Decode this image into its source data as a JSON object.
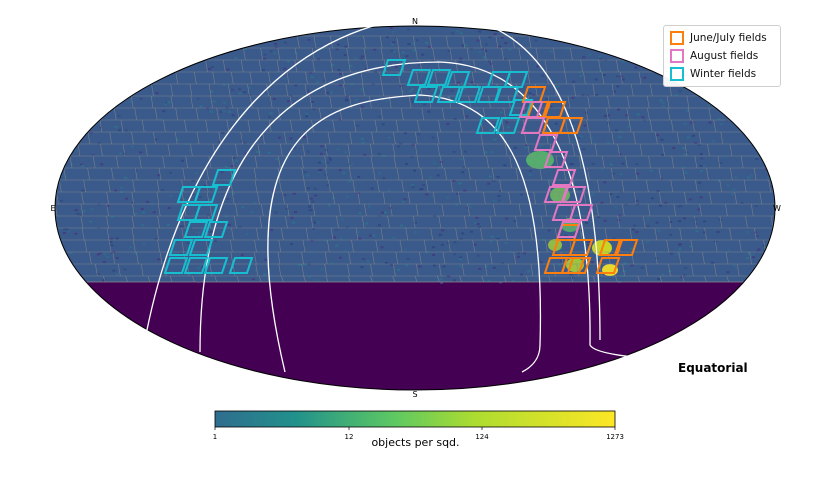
{
  "map": {
    "projection": "Equatorial",
    "compass": {
      "north": "N",
      "south": "S",
      "east": "E",
      "west": "W"
    }
  },
  "legend": {
    "placement": "top-right",
    "items": [
      {
        "label": "June/July fields",
        "color": "#ff7f0e"
      },
      {
        "label": "August fields",
        "color": "#e377c2"
      },
      {
        "label": "Winter fields",
        "color": "#17becf"
      }
    ]
  },
  "colorbar": {
    "label": "objects per sqd.",
    "ticks": [
      "1",
      "12",
      "124",
      "1273"
    ],
    "scale": "log"
  },
  "colors": {
    "background_fill": "#440154",
    "survey_base": "#3b5a8c",
    "tile_grid": "#8a8a8a",
    "curves": "#ffffff"
  }
}
